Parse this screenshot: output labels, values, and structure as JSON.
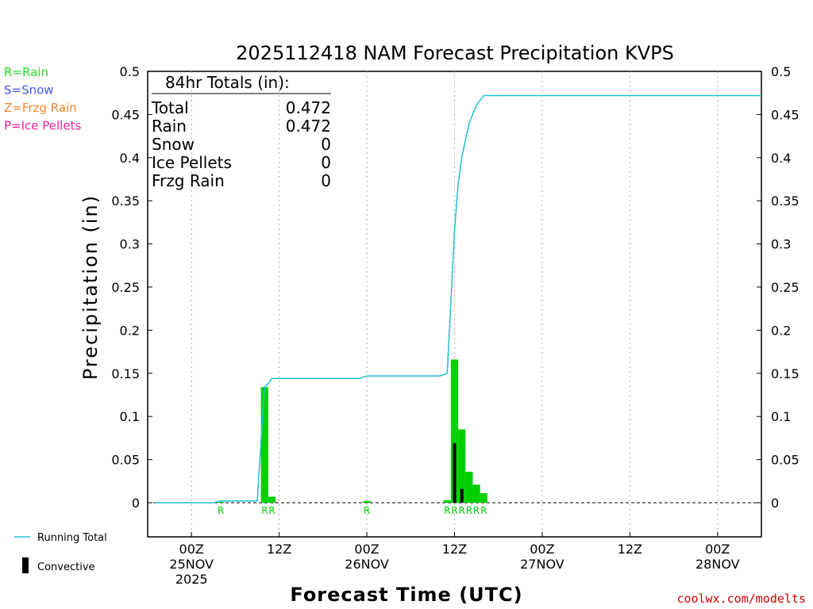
{
  "title": "2025112418 NAM Forecast Precipitation KVPS",
  "ylabel": "Precipitation (in)",
  "xlabel": "Forecast Time (UTC)",
  "credit": "coolwx.com/modelts",
  "ptype_legend": [
    {
      "text": "R=Rain",
      "color": "#22dd22"
    },
    {
      "text": "S=Snow",
      "color": "#4455ee"
    },
    {
      "text": "Z=Frzg Rain",
      "color": "#ee8833"
    },
    {
      "text": "P=Ice Pellets",
      "color": "#ee2299"
    }
  ],
  "totals": {
    "header": "84hr Totals (in):",
    "rows": [
      {
        "label": "Total",
        "value": "0.472"
      },
      {
        "label": "Rain",
        "value": "0.472"
      },
      {
        "label": "Snow",
        "value": "0"
      },
      {
        "label": "Ice Pellets",
        "value": "0"
      },
      {
        "label": "Frzg Rain",
        "value": "0"
      }
    ]
  },
  "bottom_legend": {
    "running_total": "Running Total",
    "convective": "Convective"
  },
  "colors": {
    "rain_bar": "#00d000",
    "convective_bar": "#000000",
    "running_total": "#20c0d0",
    "grid": "#aaaaaa"
  },
  "chart_data": {
    "type": "bar",
    "title": "2025112418 NAM Forecast Precipitation KVPS",
    "xlabel": "Forecast Time (UTC)",
    "ylabel": "Precipitation (in)",
    "x_unit": "forecast hour from 2025-11-24 18Z",
    "xlim": [
      0,
      84
    ],
    "ylim": [
      -0.04,
      0.5
    ],
    "yticks": [
      0,
      0.05,
      0.1,
      0.15,
      0.2,
      0.25,
      0.3,
      0.35,
      0.4,
      0.45,
      0.5
    ],
    "ytick_labels": [
      "0",
      "0.05",
      "0.1",
      "0.15",
      "0.2",
      "0.25",
      "0.3",
      "0.35",
      "0.4",
      "0.45",
      "0.5"
    ],
    "xticks": [
      {
        "hour": 6,
        "lines": [
          "00Z",
          "25NOV",
          "2025"
        ]
      },
      {
        "hour": 18,
        "lines": [
          "12Z"
        ]
      },
      {
        "hour": 30,
        "lines": [
          "00Z",
          "26NOV"
        ]
      },
      {
        "hour": 42,
        "lines": [
          "12Z"
        ]
      },
      {
        "hour": 54,
        "lines": [
          "00Z",
          "27NOV"
        ]
      },
      {
        "hour": 66,
        "lines": [
          "12Z"
        ]
      },
      {
        "hour": 78,
        "lines": [
          "00Z",
          "28NOV"
        ]
      }
    ],
    "grid": true,
    "series": [
      {
        "name": "Rain",
        "hours": [
          10,
          16,
          17,
          30,
          41,
          42,
          43,
          44,
          45,
          46
        ],
        "values": [
          0.001,
          0.134,
          0.007,
          0.002,
          0.003,
          0.166,
          0.085,
          0.036,
          0.021,
          0.011
        ]
      },
      {
        "name": "Convective",
        "hours": [
          42,
          43
        ],
        "values": [
          0.069,
          0.016
        ]
      },
      {
        "name": "Running Total",
        "hours": [
          1,
          9,
          10,
          15,
          16,
          16.5,
          17,
          18,
          29,
          30,
          31,
          40,
          41,
          42,
          42.5,
          43,
          44,
          45,
          46,
          47,
          84
        ],
        "values": [
          0,
          0,
          0.002,
          0.002,
          0.134,
          0.138,
          0.144,
          0.144,
          0.144,
          0.147,
          0.147,
          0.147,
          0.15,
          0.316,
          0.37,
          0.401,
          0.44,
          0.461,
          0.472,
          0.472,
          0.472
        ]
      }
    ],
    "ptype_marks": [
      {
        "hour": 10,
        "text": "R"
      },
      {
        "hour": 16,
        "text": "R"
      },
      {
        "hour": 17,
        "text": "R"
      },
      {
        "hour": 30,
        "text": "R"
      },
      {
        "hour": 41,
        "text": "R"
      },
      {
        "hour": 42,
        "text": "R"
      },
      {
        "hour": 43,
        "text": "R"
      },
      {
        "hour": 44,
        "text": "R"
      },
      {
        "hour": 45,
        "text": "R"
      },
      {
        "hour": 46,
        "text": "R"
      }
    ]
  }
}
